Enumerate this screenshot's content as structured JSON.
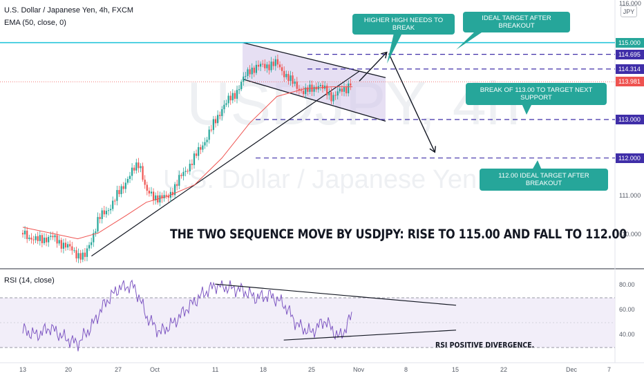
{
  "legend": {
    "symbol_line": "U.S. Dollar / Japanese Yen, 4h, FXCM",
    "ema_line": "EMA (50, close, 0)",
    "rsi_line": "RSI (14, close)"
  },
  "watermark": {
    "symbol": "USDJPY, 4h",
    "name": "U.S. Dollar / Japanese Yen"
  },
  "callouts": [
    {
      "key": "higher_high",
      "text": "HIGHER HIGH NEEDS TO BREAK"
    },
    {
      "key": "ideal_target",
      "text": "IDEAL TARGET AFTER BREAKOUT"
    },
    {
      "key": "break_113",
      "text": "BREAK OF 113.00 TO TARGET NEXT SUPPORT"
    },
    {
      "key": "target_112",
      "text": "112.00 IDEAL TARGET AFTER BREAKOUT"
    }
  ],
  "headline": "THE TWO SEQUENCE MOVE BY USDJPY: RISE TO 115.00 AND FALL TO 112.00",
  "rsi_note": "RSI POSITIVE DIVERGENCE.",
  "currency_badge": "JPY",
  "colors": {
    "up": "#26a69a",
    "down": "#ef5350",
    "ema": "#ef5350",
    "rsi": "#7e57c2",
    "resistance": "#26c6da",
    "target_lines": "#3f2ea8",
    "channel_fill": "#d1c4e9"
  },
  "chart_data": {
    "type": "candlestick",
    "symbol": "USDJPY",
    "timeframe": "4h",
    "price_axis": {
      "ticks": [
        "116.000",
        "111.000",
        "110.000"
      ],
      "range": [
        109.2,
        116.2
      ]
    },
    "time_axis": {
      "ticks": [
        "13",
        "20",
        "27",
        "Oct",
        "11",
        "18",
        "25",
        "Nov",
        "8",
        "15",
        "22",
        "Dec",
        "7"
      ]
    },
    "price_path": [
      [
        "Sep 13",
        110.05
      ],
      [
        "Sep 15",
        109.85
      ],
      [
        "Sep 17",
        109.95
      ],
      [
        "Sep 19",
        109.75
      ],
      [
        "Sep 21",
        109.5
      ],
      [
        "Sep 22",
        109.4
      ],
      [
        "Sep 24",
        110.4
      ],
      [
        "Sep 26",
        110.8
      ],
      [
        "Sep 28",
        111.4
      ],
      [
        "Sep 30",
        111.9
      ],
      [
        "Oct 1",
        111.1
      ],
      [
        "Oct 2",
        111.0
      ],
      [
        "Oct 4",
        110.95
      ],
      [
        "Oct 6",
        111.5
      ],
      [
        "Oct 8",
        112.0
      ],
      [
        "Oct 10",
        112.6
      ],
      [
        "Oct 12",
        113.3
      ],
      [
        "Oct 14",
        113.7
      ],
      [
        "Oct 16",
        114.3
      ],
      [
        "Oct 18",
        114.4
      ],
      [
        "Oct 20",
        114.45
      ],
      [
        "Oct 22",
        114.0
      ],
      [
        "Oct 24",
        113.7
      ],
      [
        "Oct 26",
        113.9
      ],
      [
        "Oct 28",
        113.6
      ],
      [
        "Oct 30",
        113.8
      ],
      [
        "Oct 31",
        114.05
      ]
    ],
    "ema_path": [
      [
        "Sep 13",
        110.2
      ],
      [
        "Sep 17",
        110.05
      ],
      [
        "Sep 21",
        109.9
      ],
      [
        "Sep 24",
        110.05
      ],
      [
        "Sep 28",
        110.5
      ],
      [
        "Oct 1",
        110.85
      ],
      [
        "Oct 4",
        111.0
      ],
      [
        "Oct 8",
        111.3
      ],
      [
        "Oct 12",
        112.0
      ],
      [
        "Oct 16",
        112.9
      ],
      [
        "Oct 20",
        113.6
      ],
      [
        "Oct 24",
        113.8
      ],
      [
        "Oct 28",
        113.85
      ],
      [
        "Oct 31",
        113.85
      ]
    ],
    "levels": [
      {
        "label": "115.000",
        "price": 115.0,
        "style": "solid",
        "color": "#26c6da",
        "tag_bg": "#26a69a"
      },
      {
        "label": "114.695",
        "price": 114.695,
        "style": "dashed",
        "color": "#3f2ea8",
        "tag_bg": "#3f2ea8"
      },
      {
        "label": "114.314",
        "price": 114.314,
        "style": "dashed",
        "color": "#3f2ea8",
        "tag_bg": "#3f2ea8"
      },
      {
        "label": "113.981",
        "price": 113.981,
        "style": "dotted",
        "color": "#ef5350",
        "tag_bg": "#ef5350"
      },
      {
        "label": "113.000",
        "price": 113.0,
        "style": "dashed",
        "color": "#3f2ea8",
        "tag_bg": "#3f2ea8"
      },
      {
        "label": "112.000",
        "price": 112.0,
        "style": "dashed",
        "color": "#3f2ea8",
        "tag_bg": "#3f2ea8"
      }
    ],
    "channel": {
      "upper": [
        [
          "Oct 15",
          115.0
        ],
        [
          "Nov 1",
          114.0
        ]
      ],
      "lower": [
        [
          "Oct 15",
          114.05
        ],
        [
          "Nov 1",
          112.85
        ]
      ]
    },
    "trendline": [
      [
        "Sep 23",
        109.45
      ],
      [
        "Oct 31",
        114.4
      ]
    ],
    "projection": [
      [
        "Nov 1",
        114.0
      ],
      [
        "Nov 5",
        114.75
      ],
      [
        "Nov 12",
        112.15
      ]
    ],
    "rsi": {
      "axis_ticks": [
        "80.00",
        "60.00",
        "40.00"
      ],
      "range": [
        25,
        85
      ],
      "bands": [
        30,
        70
      ],
      "path": [
        [
          "Sep 13",
          44
        ],
        [
          "Sep 15",
          40
        ],
        [
          "Sep 17",
          46
        ],
        [
          "Sep 19",
          38
        ],
        [
          "Sep 21",
          33
        ],
        [
          "Sep 23",
          47
        ],
        [
          "Sep 25",
          66
        ],
        [
          "Sep 27",
          78
        ],
        [
          "Sep 29",
          80
        ],
        [
          "Sep 30",
          70
        ],
        [
          "Oct 1",
          55
        ],
        [
          "Oct 3",
          42
        ],
        [
          "Oct 5",
          50
        ],
        [
          "Oct 7",
          62
        ],
        [
          "Oct 9",
          72
        ],
        [
          "Oct 11",
          80
        ],
        [
          "Oct 13",
          78
        ],
        [
          "Oct 15",
          76
        ],
        [
          "Oct 17",
          70
        ],
        [
          "Oct 19",
          72
        ],
        [
          "Oct 21",
          65
        ],
        [
          "Oct 23",
          48
        ],
        [
          "Oct 25",
          42
        ],
        [
          "Oct 27",
          52
        ],
        [
          "Oct 29",
          38
        ],
        [
          "Oct 30",
          45
        ],
        [
          "Oct 31",
          58
        ]
      ],
      "divergence_upper": [
        [
          "Oct 11",
          81
        ],
        [
          "Nov 15",
          64
        ]
      ],
      "divergence_lower": [
        [
          "Oct 21",
          36
        ],
        [
          "Nov 15",
          44
        ]
      ]
    }
  }
}
